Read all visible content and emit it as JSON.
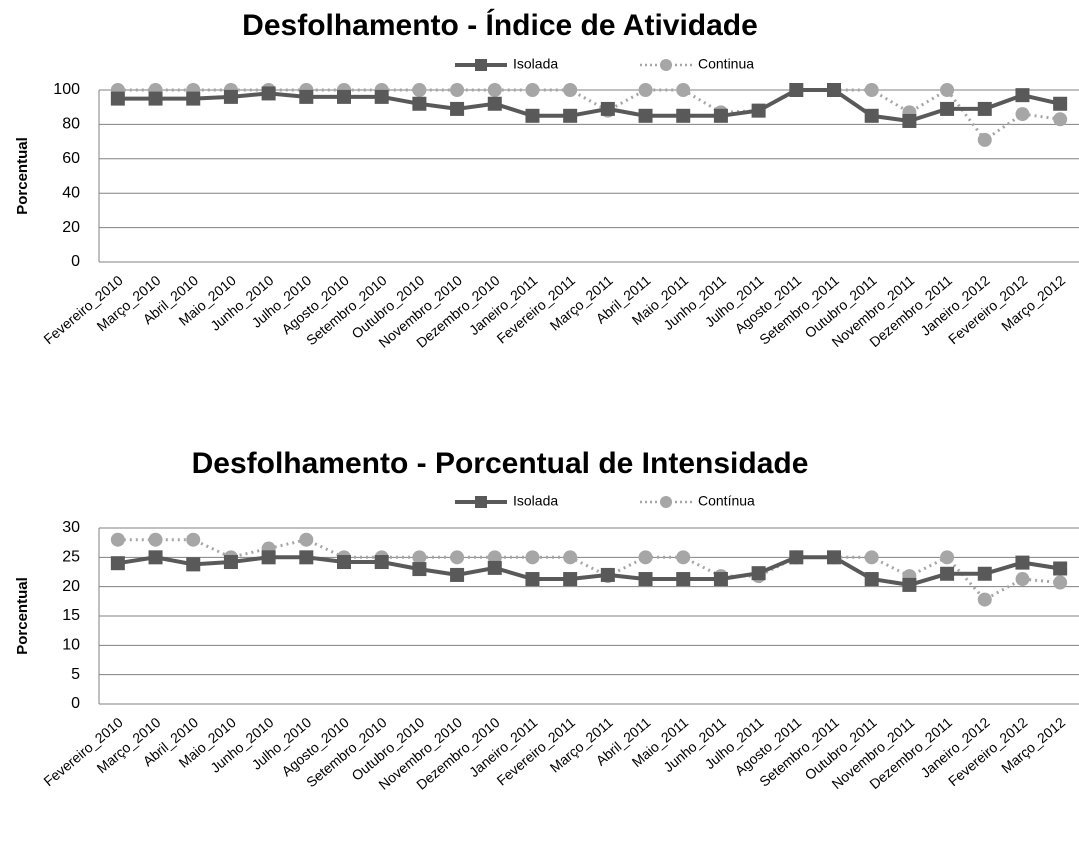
{
  "chart_data": [
    {
      "type": "line",
      "title": "Desfolhamento - Índice de Atividade",
      "y_label": "Porcentual",
      "categories": [
        "Fevereiro_2010",
        "Março_2010",
        "Abril_2010",
        "Maio_2010",
        "Junho_2010",
        "Julho_2010",
        "Agosto_2010",
        "Setembro_2010",
        "Outubro_2010",
        "Novembro_2010",
        "Dezembro_2010",
        "Janeiro_2011",
        "Fevereiro_2011",
        "Março_2011",
        "Abril_2011",
        "Maio_2011",
        "Junho_2011",
        "Julho_2011",
        "Agosto_2011",
        "Setembro_2011",
        "Outubro_2011",
        "Novembro_2011",
        "Dezembro_2011",
        "Janeiro_2012",
        "Fevereiro_2012",
        "Março_2012"
      ],
      "series": [
        {
          "name": "Isolada",
          "color": "#595959",
          "values": [
            95,
            95,
            95,
            96,
            98,
            96,
            96,
            96,
            92,
            89,
            92,
            85,
            85,
            89,
            85,
            85,
            85,
            88,
            100,
            100,
            85,
            82,
            89,
            89,
            97,
            92
          ]
        },
        {
          "name": "Continua",
          "color": "#a6a6a6",
          "values": [
            100,
            100,
            100,
            100,
            100,
            100,
            100,
            100,
            100,
            100,
            100,
            100,
            100,
            88,
            100,
            100,
            87,
            88,
            100,
            100,
            100,
            87,
            100,
            71,
            86,
            83
          ]
        }
      ],
      "ylim": [
        0,
        100
      ],
      "yticks": [
        0,
        20,
        40,
        60,
        80,
        100
      ],
      "grid": true,
      "legend": "top"
    },
    {
      "type": "line",
      "title": "Desfolhamento - Porcentual de Intensidade",
      "y_label": "Porcentual",
      "categories": [
        "Fevereiro_2010",
        "Março_2010",
        "Abril_2010",
        "Maio_2010",
        "Junho_2010",
        "Julho_2010",
        "Agosto_2010",
        "Setembro_2010",
        "Outubro_2010",
        "Novembro_2010",
        "Dezembro_2010",
        "Janeiro_2011",
        "Fevereiro_2011",
        "Março_2011",
        "Abril_2011",
        "Maio_2011",
        "Junho_2011",
        "Julho_2011",
        "Agosto_2011",
        "Setembro_2011",
        "Outubro_2011",
        "Novembro_2011",
        "Dezembro_2011",
        "Janeiro_2012",
        "Fevereiro_2012",
        "Março_2012"
      ],
      "series": [
        {
          "name": "Isolada",
          "color": "#595959",
          "values": [
            24,
            25,
            23.8,
            24.2,
            25,
            25,
            24.2,
            24.2,
            23,
            22,
            23.2,
            21.3,
            21.3,
            22,
            21.3,
            21.3,
            21.3,
            22.3,
            25,
            25,
            21.3,
            20.3,
            22.2,
            22.2,
            24.1,
            23.1
          ]
        },
        {
          "name": "Contínua",
          "color": "#a6a6a6",
          "values": [
            28,
            28,
            28,
            25,
            26.5,
            28,
            25,
            25,
            25,
            25,
            25,
            25,
            25,
            21.8,
            25,
            25,
            21.8,
            21.8,
            25,
            25,
            25,
            21.8,
            25,
            17.8,
            21.3,
            20.7
          ]
        }
      ],
      "ylim": [
        0,
        30
      ],
      "yticks": [
        0,
        5,
        10,
        15,
        20,
        25,
        30
      ],
      "grid": true,
      "legend": "top"
    }
  ]
}
